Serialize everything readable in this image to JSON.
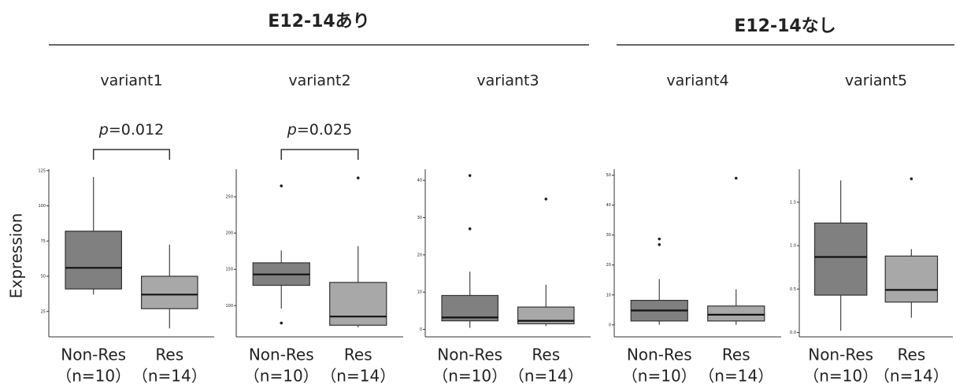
{
  "groups": [
    {
      "title": "E12-14あり"
    },
    {
      "title": "E12-14なし"
    }
  ],
  "y_label": "Expression",
  "chart_data": [
    {
      "type": "box",
      "title": "variant1",
      "annotation": [
        "p",
        "=0.012"
      ],
      "categories": [
        "Non-Res",
        "Res"
      ],
      "n_labels": [
        "（n=10）",
        "（n=14）"
      ],
      "colors": [
        "#808080",
        "#a8a8a8"
      ],
      "ylim": [
        7,
        126
      ],
      "yticks": [
        25,
        50,
        75,
        100,
        125
      ],
      "boxes": [
        {
          "whisker_low": 37,
          "q1": 41,
          "median": 56,
          "q3": 82,
          "whisker_high": 120.5,
          "outliers": []
        },
        {
          "whisker_low": 13,
          "q1": 27,
          "median": 37,
          "q3": 50,
          "whisker_high": 72.5,
          "outliers": []
        }
      ]
    },
    {
      "type": "box",
      "title": "variant2",
      "annotation": [
        "p",
        "=0.025"
      ],
      "categories": [
        "Non-Res",
        "Res"
      ],
      "n_labels": [
        "（n=10）",
        "（n=14）"
      ],
      "colors": [
        "#808080",
        "#a8a8a8"
      ],
      "ylim": [
        57,
        288
      ],
      "yticks": [
        100,
        150,
        200,
        250
      ],
      "boxes": [
        {
          "whisker_low": 96,
          "q1": 128,
          "median": 143,
          "q3": 159,
          "whisker_high": 176,
          "outliers": [
            265,
            76
          ]
        },
        {
          "whisker_low": 70,
          "q1": 73,
          "median": 85,
          "q3": 132,
          "whisker_high": 182,
          "outliers": [
            276
          ]
        }
      ]
    },
    {
      "type": "box",
      "title": "variant3",
      "categories": [
        "Non-Res",
        "Res"
      ],
      "n_labels": [
        "（n=10）",
        "（n=14）"
      ],
      "colors": [
        "#808080",
        "#a8a8a8"
      ],
      "ylim": [
        -2,
        43
      ],
      "yticks": [
        0,
        10,
        20,
        30,
        40
      ],
      "boxes": [
        {
          "whisker_low": 0.4,
          "q1": 2.3,
          "median": 3.2,
          "q3": 9.1,
          "whisker_high": 15.5,
          "outliers": [
            41.3,
            27
          ]
        },
        {
          "whisker_low": 0.9,
          "q1": 1.5,
          "median": 2.3,
          "q3": 6,
          "whisker_high": 12,
          "outliers": [
            35
          ]
        }
      ]
    },
    {
      "type": "box",
      "title": "variant4",
      "categories": [
        "Non-Res",
        "Res"
      ],
      "n_labels": [
        "（n=10）",
        "（n=14）"
      ],
      "colors": [
        "#808080",
        "#a8a8a8"
      ],
      "ylim": [
        -4,
        52
      ],
      "yticks": [
        0,
        10,
        20,
        30,
        40,
        50
      ],
      "boxes": [
        {
          "whisker_low": 0,
          "q1": 1.3,
          "median": 4.8,
          "q3": 8.2,
          "whisker_high": 15.3,
          "outliers": [
            28.7,
            26.8
          ]
        },
        {
          "whisker_low": 0,
          "q1": 1.3,
          "median": 3.4,
          "q3": 6.3,
          "whisker_high": 11.9,
          "outliers": [
            49
          ]
        }
      ]
    },
    {
      "type": "box",
      "title": "variant5",
      "categories": [
        "Non-Res",
        "Res"
      ],
      "n_labels": [
        "（n=10）",
        "（n=14）"
      ],
      "colors": [
        "#808080",
        "#a8a8a8"
      ],
      "ylim": [
        -0.05,
        1.88
      ],
      "yticks": [
        {
          "value": 0,
          "label": "0.0"
        },
        0.5,
        {
          "value": 1,
          "label": "1.0"
        },
        1.5
      ],
      "boxes": [
        {
          "whisker_low": 0.02,
          "q1": 0.43,
          "median": 0.87,
          "q3": 1.26,
          "whisker_high": 1.75,
          "outliers": []
        },
        {
          "whisker_low": 0.17,
          "q1": 0.35,
          "median": 0.49,
          "q3": 0.88,
          "whisker_high": 0.96,
          "outliers": [
            1.77
          ]
        }
      ]
    }
  ]
}
